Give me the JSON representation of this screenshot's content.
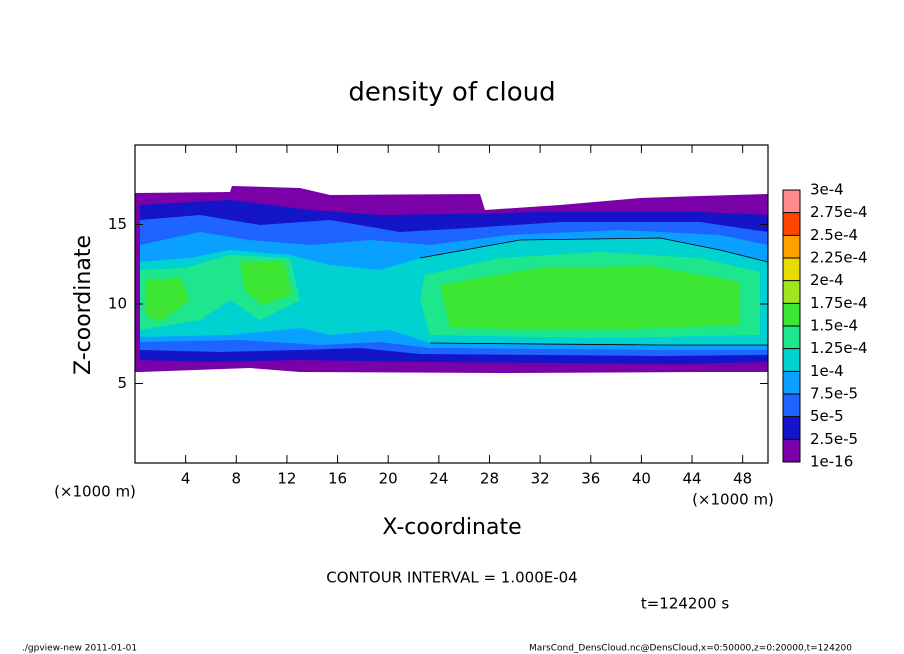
{
  "chart_data": {
    "type": "contour",
    "title": "density of cloud",
    "x_label": "X-coordinate",
    "y_label": "Z-coordinate",
    "x_unit": "(×1000 m)",
    "y_unit": "(×1000 m)",
    "xlim": [
      0,
      50
    ],
    "xticks": [
      4,
      8,
      12,
      16,
      20,
      24,
      28,
      32,
      36,
      40,
      44,
      48
    ],
    "ylim": [
      0,
      20
    ],
    "yticks": [
      5,
      10,
      15
    ],
    "levels": [
      {
        "value": 1e-16,
        "label": "1e-16"
      },
      {
        "value": 2.5e-05,
        "label": "2.5e-5"
      },
      {
        "value": 5e-05,
        "label": "5e-5"
      },
      {
        "value": 7.5e-05,
        "label": "7.5e-5"
      },
      {
        "value": 0.0001,
        "label": "1e-4"
      },
      {
        "value": 0.000125,
        "label": "1.25e-4"
      },
      {
        "value": 0.00015,
        "label": "1.5e-4"
      },
      {
        "value": 0.000175,
        "label": "1.75e-4"
      },
      {
        "value": 0.0002,
        "label": "2e-4"
      },
      {
        "value": 0.000225,
        "label": "2.25e-4"
      },
      {
        "value": 0.00025,
        "label": "2.5e-4"
      },
      {
        "value": 0.000275,
        "label": "2.75e-4"
      },
      {
        "value": 0.0003,
        "label": "3e-4"
      }
    ],
    "colors": [
      "#7a00a8",
      "#1414c8",
      "#1e64ff",
      "#0aa0ff",
      "#00d2d2",
      "#1ee68c",
      "#3ce632",
      "#a0e61e",
      "#e6dc00",
      "#ffa000",
      "#ff4600",
      "#ff8c8c"
    ],
    "contour_interval": "CONTOUR INTERVAL = 1.000E-04",
    "time": "t=124200 s",
    "footer_left": "./gpview-new   2011-01-01",
    "footer_right": "MarsCond_DensCloud.nc@DensCloud,x=0:50000,z=0:20000,t=124200"
  }
}
